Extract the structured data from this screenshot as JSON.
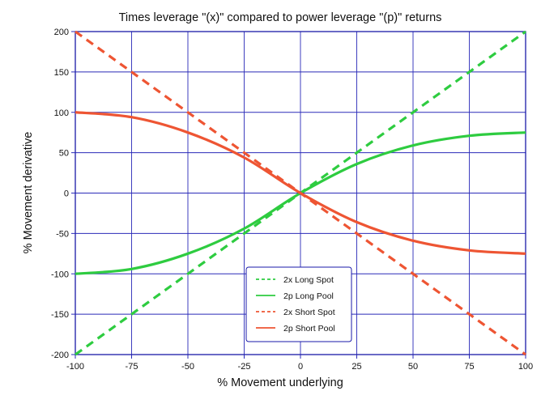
{
  "chart_data": {
    "type": "line",
    "title": "Times leverage \"(x)\" compared to power leverage \"(p)\" returns",
    "xlabel": "% Movement underlying",
    "ylabel": "% Movement derivative",
    "xlim": [
      -100,
      100
    ],
    "ylim": [
      -200,
      200
    ],
    "x_ticks": [
      -100,
      -75,
      -50,
      -25,
      0,
      25,
      50,
      75,
      100
    ],
    "y_ticks": [
      200,
      150,
      100,
      50,
      0,
      -50,
      -100,
      -150,
      -200
    ],
    "grid": true,
    "legend_position": "bottom-center",
    "series": [
      {
        "name": "2x Long Spot",
        "style": "dashed",
        "color": "#2ecc40",
        "x": [
          -100,
          100
        ],
        "y": [
          -200,
          200
        ]
      },
      {
        "name": "2p Long Pool",
        "style": "solid",
        "color": "#2ecc40",
        "x": [
          -100,
          -75,
          -50,
          -25,
          0,
          25,
          50,
          75,
          100
        ],
        "y": [
          -100,
          -94,
          -75,
          -44,
          0,
          36,
          59,
          71,
          75
        ]
      },
      {
        "name": "2x Short Spot",
        "style": "dashed",
        "color": "#ee5533",
        "x": [
          -100,
          100
        ],
        "y": [
          200,
          -200
        ]
      },
      {
        "name": "2p Short Pool",
        "style": "solid",
        "color": "#ee5533",
        "x": [
          -100,
          -75,
          -50,
          -25,
          0,
          25,
          50,
          75,
          100
        ],
        "y": [
          100,
          94,
          75,
          44,
          0,
          -36,
          -59,
          -71,
          -75
        ]
      }
    ]
  }
}
